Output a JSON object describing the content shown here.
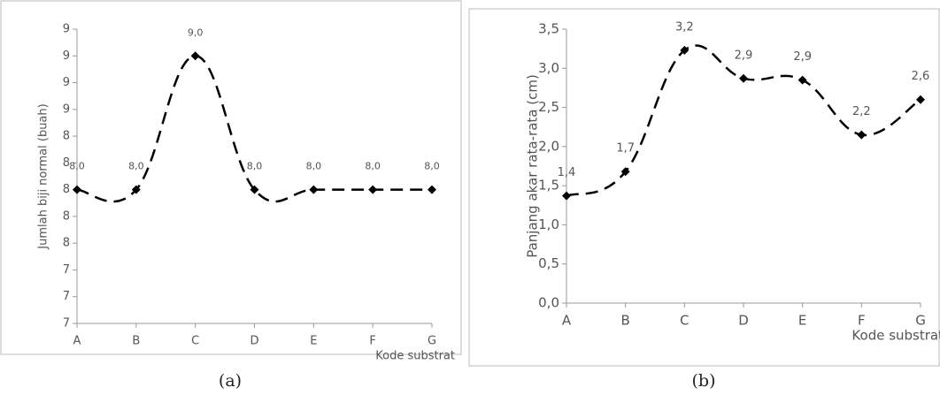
{
  "chart_data": [
    {
      "type": "line",
      "caption": "(a)",
      "y_label": "Jumlah biji normal (buah)",
      "x_label": "Kode substrat",
      "categories": [
        "A",
        "B",
        "C",
        "D",
        "E",
        "F",
        "G"
      ],
      "values": [
        8.0,
        8.0,
        9.0,
        8.0,
        8.0,
        8.0,
        8.0
      ],
      "value_labels": [
        "8,0",
        "8,0",
        "9,0",
        "8,0",
        "8,0",
        "8,0",
        "8,0"
      ],
      "color": "#000000",
      "smooth": true,
      "dashed": true,
      "ylim": [
        7.0,
        9.2
      ],
      "yticks": [
        {
          "value": 7.0,
          "label": "7"
        },
        {
          "value": 7.2,
          "label": "7"
        },
        {
          "value": 7.4,
          "label": "7"
        },
        {
          "value": 7.6,
          "label": "8"
        },
        {
          "value": 7.8,
          "label": "8"
        },
        {
          "value": 8.0,
          "label": "8"
        },
        {
          "value": 8.2,
          "label": "8"
        },
        {
          "value": 8.4,
          "label": "8"
        },
        {
          "value": 8.6,
          "label": "9"
        },
        {
          "value": 8.8,
          "label": "9"
        },
        {
          "value": 9.0,
          "label": "9"
        },
        {
          "value": 9.2,
          "label": "9"
        }
      ]
    },
    {
      "type": "line",
      "caption": "(b)",
      "y_label": "Panjang akar rata-rata (cm)",
      "x_label": "Kode substrat",
      "categories": [
        "A",
        "B",
        "C",
        "D",
        "E",
        "F",
        "G"
      ],
      "values": [
        1.37,
        1.68,
        3.23,
        2.87,
        2.85,
        2.15,
        2.6
      ],
      "value_labels": [
        "1,4",
        "1,7",
        "3,2",
        "2,9",
        "2,9",
        "2,2",
        "2,6"
      ],
      "color": "#000000",
      "smooth": true,
      "dashed": true,
      "ylim": [
        0,
        3.5
      ],
      "yticks": [
        {
          "value": 0,
          "label": "0,0"
        },
        {
          "value": 0.5,
          "label": "0,5"
        },
        {
          "value": 1.0,
          "label": "1,0"
        },
        {
          "value": 1.5,
          "label": "1,5"
        },
        {
          "value": 2.0,
          "label": "2,0"
        },
        {
          "value": 2.5,
          "label": "2,5"
        },
        {
          "value": 3.0,
          "label": "3,0"
        },
        {
          "value": 3.5,
          "label": "3,5"
        }
      ]
    }
  ]
}
